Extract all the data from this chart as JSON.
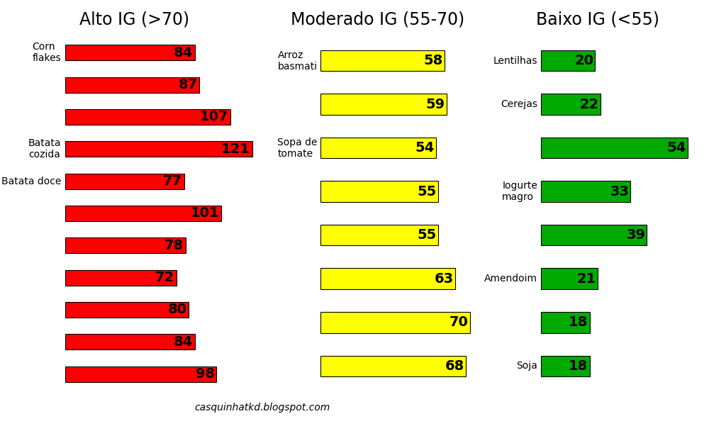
{
  "title_alto": "Alto IG (>70)",
  "title_moderado": "Moderado IG (55-70)",
  "title_baixo": "Baixo IG (<55)",
  "alto": {
    "labels": [
      "Corn\nflakes",
      "",
      "",
      "Batata\ncozida",
      "Batata doce",
      "",
      "",
      "",
      "",
      "",
      ""
    ],
    "values": [
      84,
      87,
      107,
      121,
      77,
      101,
      78,
      72,
      80,
      84,
      98
    ],
    "color": "#FF0000",
    "text_color": "#000000"
  },
  "moderado": {
    "labels": [
      "Arroz\nbasmati",
      "",
      "Sopa de\ntomate",
      "",
      "",
      "",
      "",
      ""
    ],
    "values": [
      58,
      59,
      54,
      55,
      55,
      63,
      70,
      68
    ],
    "color": "#FFFF00",
    "text_color": "#000000"
  },
  "baixo": {
    "labels": [
      "Lentilhas",
      "Cerejas",
      "",
      "Iogurte\nmagro",
      "",
      "Amendoim",
      "",
      "Soja"
    ],
    "values": [
      20,
      22,
      54,
      33,
      39,
      21,
      18,
      18
    ],
    "color": "#00AA00",
    "text_color": "#000000"
  },
  "watermark": "casquinhatkd.blogspot.com",
  "bg_color": "#FFFFFF",
  "title_fontsize": 17,
  "bar_fontsize": 14,
  "label_fontsize": 10,
  "bar_height": 0.48,
  "bar_spacing": 1.0
}
